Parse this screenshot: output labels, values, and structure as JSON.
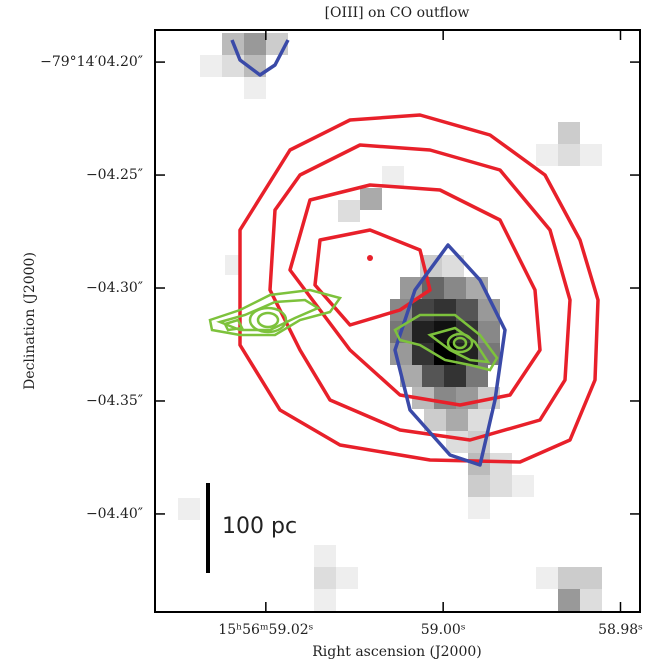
{
  "chart_data": {
    "type": "image",
    "title": "[OIII] on CO outflow",
    "xlabel": "Right ascension (J2000)",
    "ylabel": "Declination (J2000)",
    "xlim": [
      59.0325,
      58.9778
    ],
    "ylim": [
      4.4434,
      4.1858
    ],
    "xticks": [
      {
        "value": 59.02,
        "label": "15ʰ56ᵐ59.02ˢ"
      },
      {
        "value": 59.0,
        "label": "59.00ˢ"
      },
      {
        "value": 58.98,
        "label": "58.98ˢ"
      }
    ],
    "yticks": [
      {
        "value": 4.2,
        "label": "−79°14′04.20″"
      },
      {
        "value": 4.25,
        "label": "−04.25″"
      },
      {
        "value": 4.3,
        "label": "−04.30″"
      },
      {
        "value": 4.35,
        "label": "−04.35″"
      },
      {
        "value": 4.4,
        "label": "−04.40″"
      }
    ],
    "annotations": [
      "100 pc"
    ]
  }
}
